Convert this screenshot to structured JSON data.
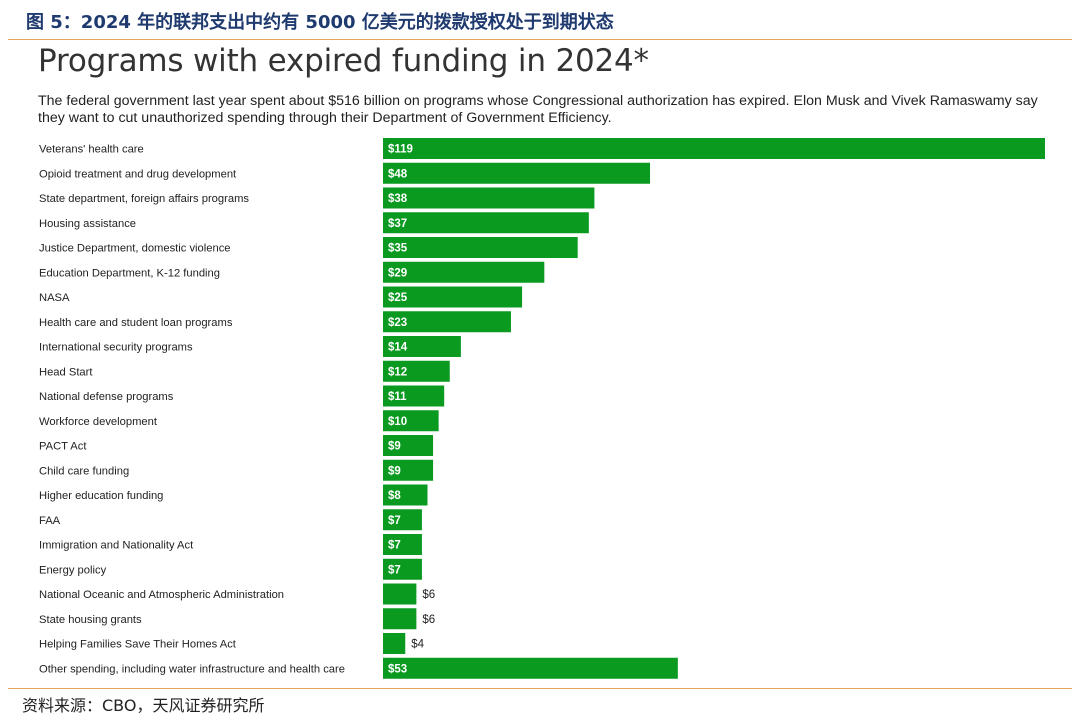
{
  "figure_caption": "图 5：2024 年的联邦支出中约有 5000 亿美元的拨款授权处于到期状态",
  "source": "资料来源：CBO，天风证券研究所",
  "colors": {
    "bar": "#0a9a20",
    "rule": "#e8a65c",
    "caption": "#1f3a6e"
  },
  "chart_data": {
    "type": "bar",
    "orientation": "horizontal",
    "title": "Programs with expired funding in 2024*",
    "subtitle": "The federal government last year spent about $516 billion on programs whose Congressional authorization has expired. Elon Musk and Vivek Ramaswamy say they want to cut unauthorized spending through their Department of Government Efficiency.",
    "xlabel": "",
    "ylabel": "",
    "xlim": [
      0,
      119
    ],
    "value_prefix": "$",
    "grid": false,
    "legend": "none",
    "categories": [
      "Veterans' health care",
      "Opioid treatment and drug development",
      "State department, foreign affairs programs",
      "Housing assistance",
      "Justice Department, domestic violence",
      "Education Department, K-12 funding",
      "NASA",
      "Health care and student loan programs",
      "International security programs",
      "Head Start",
      "National defense programs",
      "Workforce development",
      "PACT Act",
      "Child care funding",
      "Higher education funding",
      "FAA",
      "Immigration and Nationality Act",
      "Energy policy",
      "National Oceanic and Atmospheric Administration",
      "State housing grants",
      "Helping Families Save Their Homes Act",
      "Other spending, including water infrastructure and health care"
    ],
    "values": [
      119,
      48,
      38,
      37,
      35,
      29,
      25,
      23,
      14,
      12,
      11,
      10,
      9,
      9,
      8,
      7,
      7,
      7,
      6,
      6,
      4,
      53
    ]
  }
}
